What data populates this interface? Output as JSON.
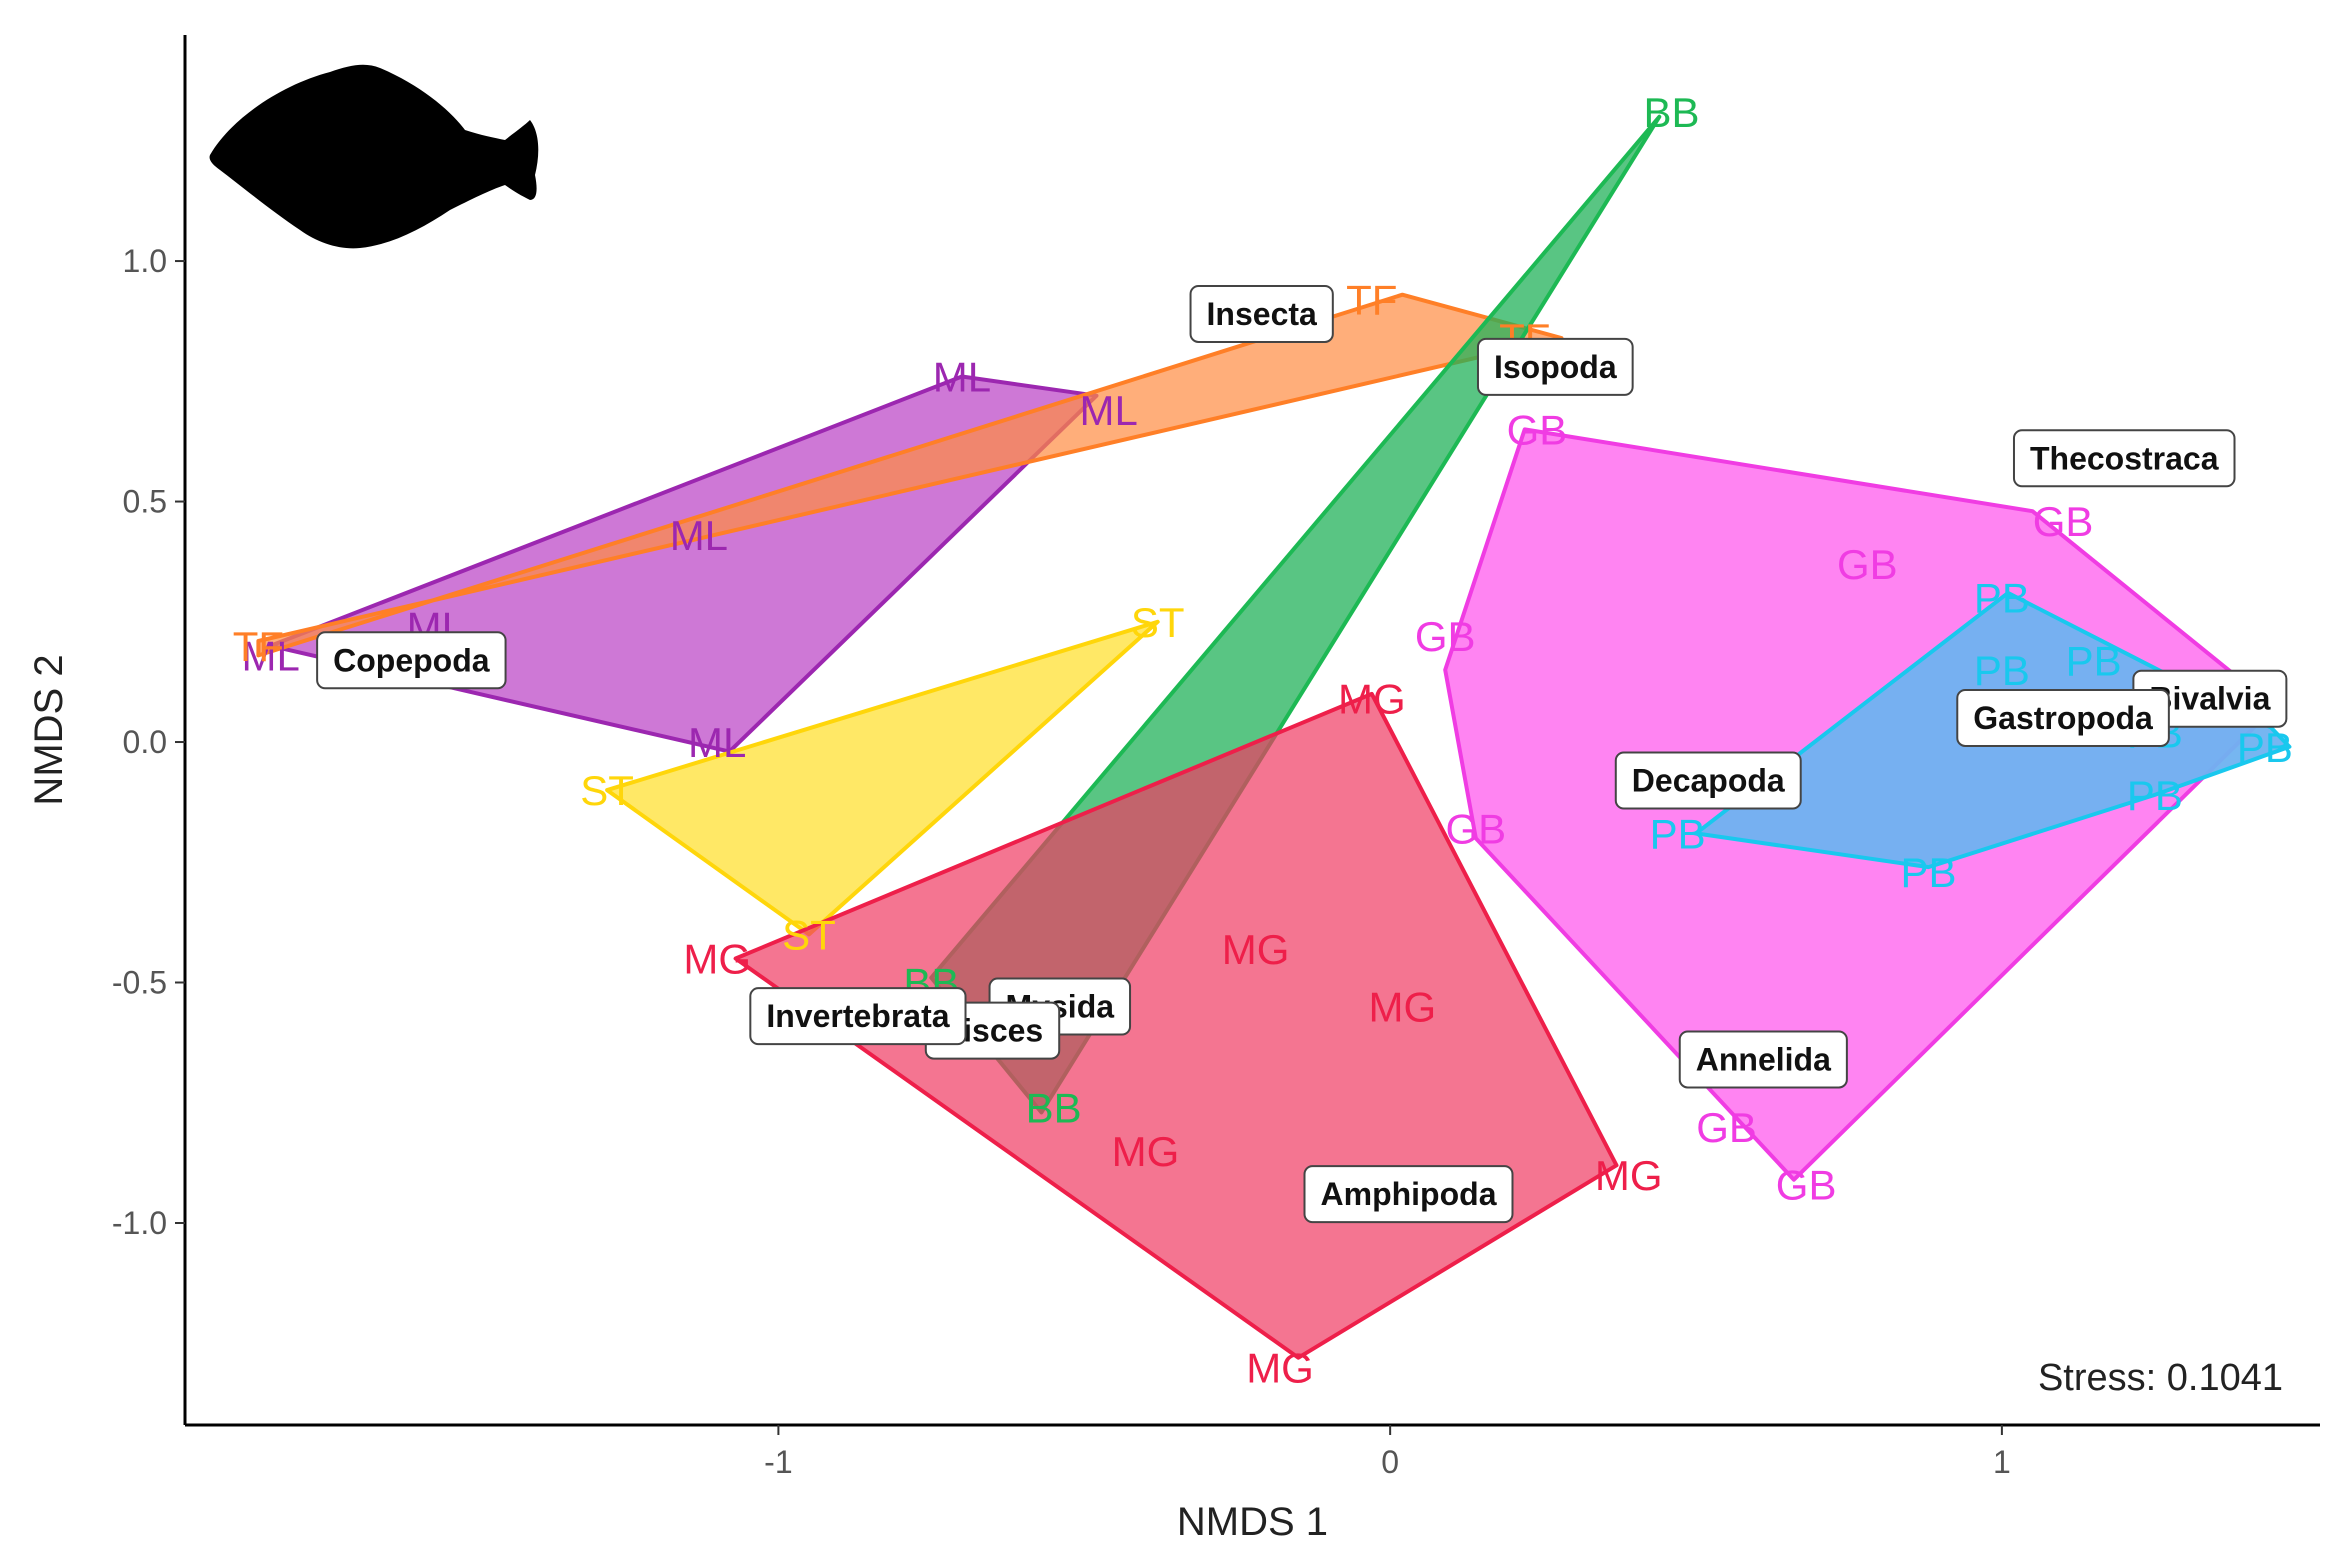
{
  "chart_data": {
    "type": "scatter",
    "xlabel": "NMDS 1",
    "ylabel": "NMDS 2",
    "xlim": [
      -1.97,
      1.52
    ],
    "ylim": [
      -1.42,
      1.47
    ],
    "x_ticks": [
      -1,
      0,
      1
    ],
    "x_tick_labels": [
      "-1",
      "0",
      "1"
    ],
    "y_ticks": [
      -1.0,
      -0.5,
      0.0,
      0.5,
      1.0
    ],
    "y_tick_labels": [
      "-1.0",
      "-0.5",
      "0.0",
      "0.5",
      "1.0"
    ],
    "grid": false,
    "stress_text": "Stress: 0.1041",
    "series": [
      {
        "label": "ML",
        "color": "#9c27b0",
        "fill": "#b93fc4",
        "hull_opacity": 0.7,
        "points": [
          [
            -0.7,
            0.76
          ],
          [
            -0.46,
            0.69
          ],
          [
            -1.13,
            0.43
          ],
          [
            -1.56,
            0.24
          ],
          [
            -1.83,
            0.18
          ],
          [
            -1.1,
            0.0
          ]
        ],
        "hull": [
          [
            -0.7,
            0.76
          ],
          [
            -0.48,
            0.72
          ],
          [
            -1.08,
            -0.02
          ],
          [
            -1.83,
            0.2
          ]
        ]
      },
      {
        "label": "TF",
        "color": "#ff7f27",
        "fill": "#ff8c42",
        "hull_opacity": 0.7,
        "points": [
          [
            -0.03,
            0.92
          ],
          [
            0.22,
            0.84
          ],
          [
            -1.85,
            0.2
          ]
        ],
        "hull": [
          [
            0.02,
            0.93
          ],
          [
            0.28,
            0.84
          ],
          [
            -1.85,
            0.21
          ],
          [
            -1.85,
            0.18
          ]
        ]
      },
      {
        "label": "BB",
        "color": "#1db954",
        "fill": "#22b25a",
        "hull_opacity": 0.75,
        "points": [
          [
            0.46,
            1.31
          ],
          [
            -0.75,
            -0.5
          ],
          [
            -0.55,
            -0.76
          ]
        ],
        "hull": [
          [
            0.44,
            1.3
          ],
          [
            -0.57,
            -0.77
          ],
          [
            -0.75,
            -0.49
          ]
        ]
      },
      {
        "label": "ST",
        "color": "#ffd60a",
        "fill": "#ffe033",
        "hull_opacity": 0.75,
        "points": [
          [
            -0.38,
            0.25
          ],
          [
            -1.28,
            -0.1
          ],
          [
            -0.95,
            -0.4
          ]
        ],
        "hull": [
          [
            -0.38,
            0.25
          ],
          [
            -1.28,
            -0.1
          ],
          [
            -0.95,
            -0.4
          ]
        ]
      },
      {
        "label": "MG",
        "color": "#ee1f4a",
        "fill": "#f03a63",
        "hull_opacity": 0.7,
        "points": [
          [
            -0.03,
            0.09
          ],
          [
            -1.1,
            -0.45
          ],
          [
            -0.22,
            -0.43
          ],
          [
            0.02,
            -0.55
          ],
          [
            -0.4,
            -0.85
          ],
          [
            0.39,
            -0.9
          ],
          [
            -0.18,
            -1.3
          ]
        ],
        "hull": [
          [
            -0.03,
            0.1
          ],
          [
            0.37,
            -0.88
          ],
          [
            -0.15,
            -1.28
          ],
          [
            -1.07,
            -0.45
          ]
        ]
      },
      {
        "label": "GB",
        "color": "#f03ce3",
        "fill": "#ff6ef0",
        "hull_opacity": 0.85,
        "points": [
          [
            0.24,
            0.65
          ],
          [
            1.1,
            0.46
          ],
          [
            0.78,
            0.37
          ],
          [
            0.09,
            0.22
          ],
          [
            0.14,
            -0.18
          ],
          [
            0.55,
            -0.8
          ],
          [
            0.68,
            -0.92
          ]
        ],
        "hull": [
          [
            0.22,
            0.65
          ],
          [
            1.05,
            0.48
          ],
          [
            1.38,
            0.14
          ],
          [
            1.42,
            0.04
          ],
          [
            0.66,
            -0.91
          ],
          [
            0.14,
            -0.2
          ],
          [
            0.09,
            0.15
          ]
        ]
      },
      {
        "label": "PB",
        "color": "#19c8ee",
        "fill": "#6fb2f0",
        "hull_opacity": 0.95,
        "points": [
          [
            1.0,
            0.3
          ],
          [
            1.15,
            0.17
          ],
          [
            1.0,
            0.15
          ],
          [
            1.25,
            0.02
          ],
          [
            1.43,
            -0.01
          ],
          [
            1.25,
            -0.11
          ],
          [
            0.47,
            -0.19
          ],
          [
            0.88,
            -0.27
          ]
        ],
        "hull": [
          [
            1.01,
            0.31
          ],
          [
            1.44,
            0.03
          ],
          [
            1.47,
            -0.01
          ],
          [
            1.25,
            -0.11
          ],
          [
            0.88,
            -0.26
          ],
          [
            0.5,
            -0.19
          ]
        ]
      }
    ],
    "taxa": [
      {
        "label": "Insecta",
        "x": -0.21,
        "y": 0.89
      },
      {
        "label": "Isopoda",
        "x": 0.27,
        "y": 0.78
      },
      {
        "label": "Thecostraca",
        "x": 1.2,
        "y": 0.59
      },
      {
        "label": "Copepoda",
        "x": -1.6,
        "y": 0.17
      },
      {
        "label": "Bivalvia",
        "x": 1.34,
        "y": 0.09
      },
      {
        "label": "Gastropoda",
        "x": 1.1,
        "y": 0.05
      },
      {
        "label": "Decapoda",
        "x": 0.52,
        "y": -0.08
      },
      {
        "label": "Mysida",
        "x": -0.54,
        "y": -0.55
      },
      {
        "label": "Pisces",
        "x": -0.65,
        "y": -0.6
      },
      {
        "label": "Invertebrata",
        "x": -0.87,
        "y": -0.57
      },
      {
        "label": "Annelida",
        "x": 0.61,
        "y": -0.66
      },
      {
        "label": "Amphipoda",
        "x": 0.03,
        "y": -0.94
      }
    ],
    "icon": "flatfish-silhouette"
  }
}
